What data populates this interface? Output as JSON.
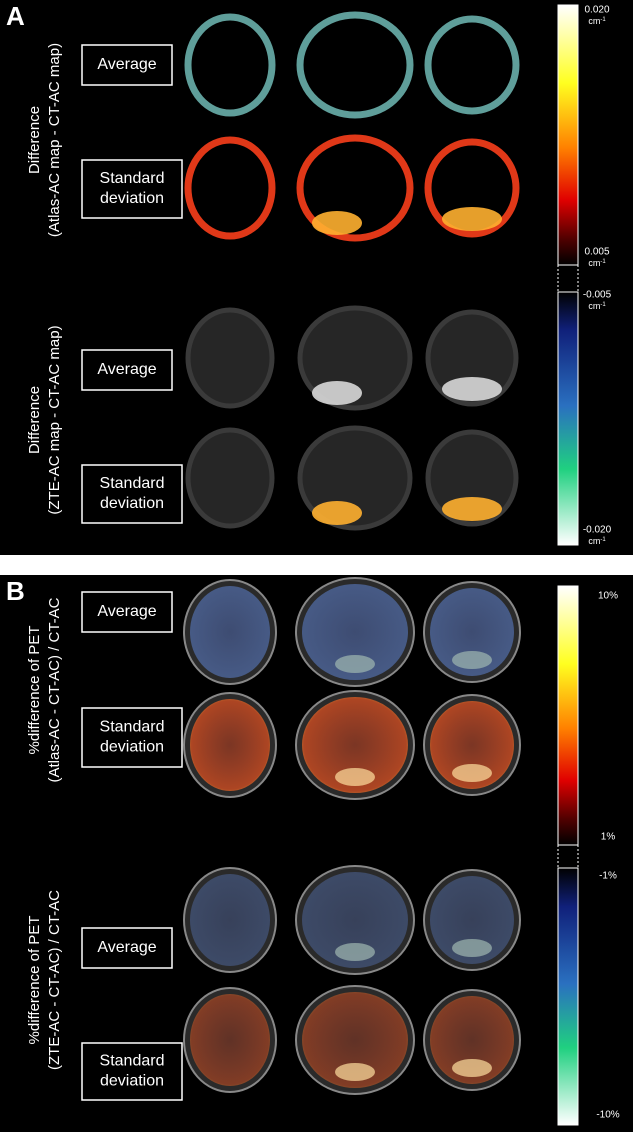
{
  "panels": [
    {
      "label": "A",
      "groups": [
        {
          "title": [
            "Difference",
            "(Atlas-AC map - CT-AC map)"
          ],
          "rows": [
            [
              "Average"
            ],
            [
              "Standard",
              "deviation"
            ]
          ]
        },
        {
          "title": [
            "Difference",
            "(ZTE-AC map - CT-AC map)"
          ],
          "rows": [
            [
              "Average"
            ],
            [
              "Standard",
              "deviation"
            ]
          ]
        }
      ],
      "scale": [
        {
          "value": "0.020",
          "unit": "cm",
          "exp": "-1"
        },
        {
          "value": "0.005",
          "unit": "cm",
          "exp": "-1"
        },
        {
          "value": "-0.005",
          "unit": "cm",
          "exp": "-1"
        },
        {
          "value": "-0.020",
          "unit": "cm",
          "exp": "-1"
        }
      ]
    },
    {
      "label": "B",
      "groups": [
        {
          "title": [
            "%difference of PET",
            "(Atlas-AC - CT-AC) / CT-AC"
          ],
          "rows": [
            [
              "Average"
            ],
            [
              "Standard",
              "deviation"
            ]
          ]
        },
        {
          "title": [
            "%difference of PET",
            "(ZTE-AC - CT-AC) / CT-AC"
          ],
          "rows": [
            [
              "Average"
            ],
            [
              "Standard",
              "deviation"
            ]
          ]
        }
      ],
      "scale": [
        {
          "value": "10%"
        },
        {
          "value": "1%"
        },
        {
          "value": "-1%"
        },
        {
          "value": "-10%"
        }
      ]
    }
  ]
}
